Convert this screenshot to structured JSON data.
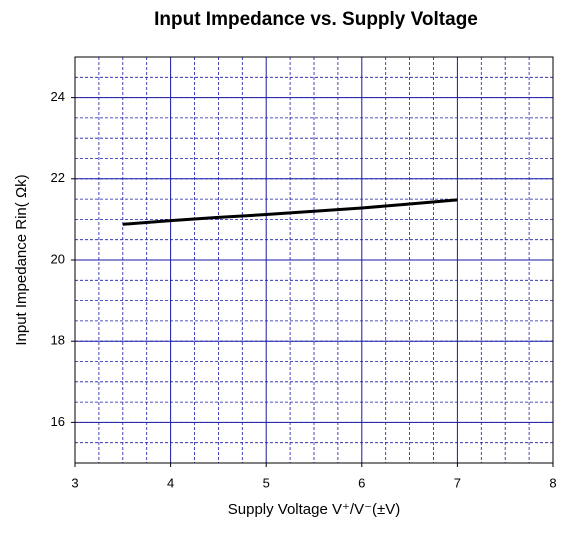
{
  "chart_data": {
    "type": "line",
    "title": "Input Impedance vs. Supply Voltage",
    "x_label": "Supply Voltage V⁺/V⁻(±V)",
    "y_label": "Input Impedance Rin( Ωk)",
    "x": [
      3.5,
      4,
      4.5,
      5,
      5.5,
      6,
      6.5,
      7
    ],
    "series": [
      {
        "color": "#000000",
        "values": [
          20.88,
          20.97,
          21.05,
          21.12,
          21.2,
          21.28,
          21.38,
          21.48
        ]
      }
    ],
    "xlim": [
      3,
      8
    ],
    "xticks": [
      3,
      4,
      5,
      6,
      7,
      8
    ],
    "ylim": [
      15,
      25
    ],
    "yticks": [
      16,
      18,
      20,
      22,
      24
    ],
    "grid": true,
    "minor_grid": true,
    "grid_color": "#1a1aa6"
  }
}
